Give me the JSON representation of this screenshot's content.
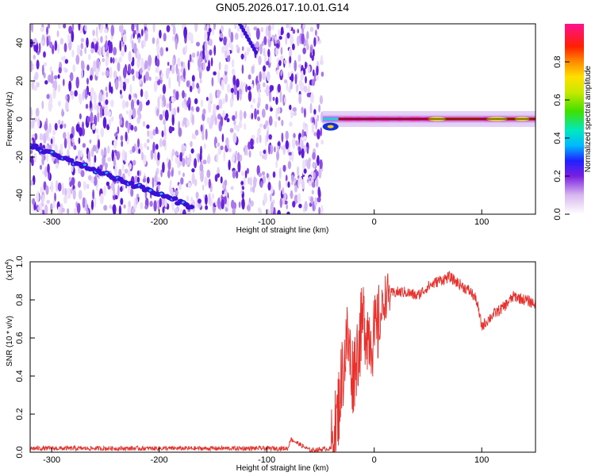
{
  "title": "GN05.2026.017.10.01.G14",
  "chart_data": [
    {
      "type": "heatmap",
      "xlabel": "Height of straight line (km)",
      "ylabel": "Frequency (Hz)",
      "xlim": [
        -320,
        150
      ],
      "ylim": [
        -50,
        50
      ],
      "xticks": [
        -300,
        -200,
        -100,
        0,
        100
      ],
      "yticks": [
        -40,
        -20,
        0,
        20,
        40
      ],
      "colorbar": {
        "label": "Normalized spectral amplitude",
        "range": [
          0.0,
          1.0
        ],
        "ticks": [
          0.0,
          0.2,
          0.4,
          0.6,
          0.8
        ],
        "tick_labels": [
          "0.0",
          "0.2",
          "0.4",
          "0.6",
          "0.8"
        ]
      },
      "features": {
        "noise_region_x": [
          -320,
          -48
        ],
        "noise_level": [
          0.0,
          0.25
        ],
        "diagonal_track_start": [
          -320,
          -14
        ],
        "diagonal_track_end": [
          -170,
          -46
        ],
        "upper_track_start": [
          -125,
          50
        ],
        "upper_track_end": [
          -110,
          35
        ],
        "carrier_start_x": -48,
        "carrier_end_x": 150,
        "carrier_frequency": 0,
        "carrier_peak_level": 0.95,
        "grid": false
      }
    },
    {
      "type": "line",
      "xlabel": "Height of straight line (km)",
      "ylabel": "SNR (10 * v/v)",
      "y_multiplier": "(x10",
      "y_multiplier_exp": "4",
      "xlim": [
        -320,
        150
      ],
      "ylim": [
        0.0,
        1.0
      ],
      "xticks": [
        -300,
        -200,
        -100,
        0,
        100
      ],
      "yticks": [
        0.0,
        0.2,
        0.4,
        0.6,
        0.8,
        1.0
      ],
      "ytick_labels": [
        "0.0",
        "0.2",
        "0.4",
        "0.6",
        "0.8",
        "1.0"
      ],
      "color": "#e8302c",
      "series": [
        {
          "x": [
            -320,
            -250,
            -200,
            -150,
            -100,
            -80,
            -78,
            -60,
            -40,
            -35,
            -30,
            -25,
            -20,
            -15,
            -10,
            -5,
            0,
            5,
            10,
            20,
            30,
            40,
            50,
            60,
            70,
            80,
            90,
            95,
            100,
            110,
            120,
            130,
            140,
            150
          ],
          "values": [
            0.02,
            0.02,
            0.02,
            0.02,
            0.02,
            0.02,
            0.07,
            0.01,
            0.02,
            0.15,
            0.4,
            0.6,
            0.4,
            0.55,
            0.7,
            0.62,
            0.6,
            0.68,
            0.82,
            0.84,
            0.84,
            0.82,
            0.87,
            0.9,
            0.92,
            0.88,
            0.84,
            0.8,
            0.66,
            0.72,
            0.76,
            0.82,
            0.8,
            0.78
          ]
        }
      ],
      "grid": false
    }
  ]
}
